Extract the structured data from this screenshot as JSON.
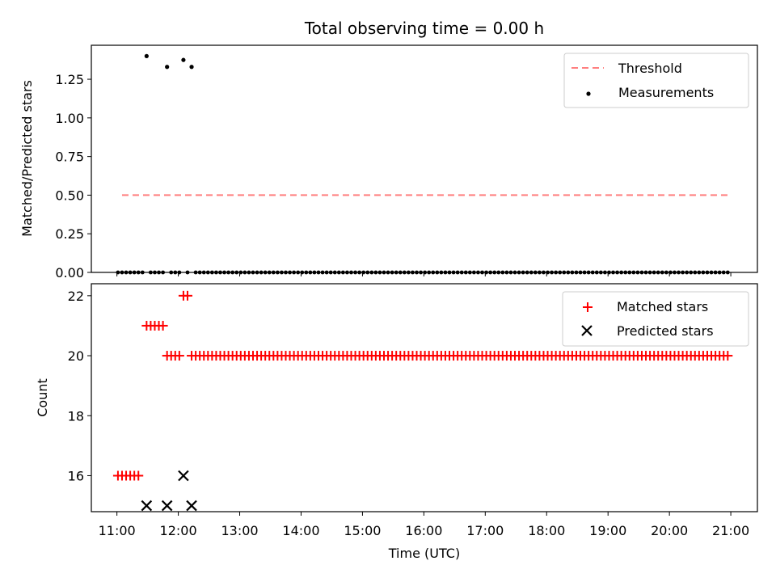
{
  "chart_data": [
    {
      "type": "scatter",
      "title": "Total observing time = 0.00 h",
      "ylabel": "Matched/Predicted stars",
      "xlabel": "",
      "ylim": [
        0,
        1.47
      ],
      "yticks": [
        "0.00",
        "0.25",
        "0.50",
        "0.75",
        "1.00",
        "1.25"
      ],
      "legend": {
        "position": "top-right",
        "entries": [
          "Threshold",
          "Measurements"
        ]
      },
      "threshold": {
        "name": "Threshold",
        "value": 0.5,
        "x_start": "11:05",
        "x_end": "21:00",
        "color": "#ff7f7f"
      },
      "measurements": {
        "name": "Measurements",
        "color": "#000000",
        "points": [
          {
            "x": "11:29",
            "y": 1.4
          },
          {
            "x": "11:49",
            "y": 1.33
          },
          {
            "x": "12:05",
            "y": 1.375
          },
          {
            "x": "12:13",
            "y": 1.33
          }
        ],
        "zero_run_start": "11:01",
        "zero_run_end": "21:00",
        "zero_step_minutes": 4
      }
    },
    {
      "type": "scatter",
      "ylabel": "Count",
      "xlabel": "Time (UTC)",
      "ylim": [
        14.8,
        22.4
      ],
      "yticks": [
        "16",
        "18",
        "20",
        "22"
      ],
      "xticks": [
        "11:00",
        "12:00",
        "13:00",
        "14:00",
        "15:00",
        "16:00",
        "17:00",
        "18:00",
        "19:00",
        "20:00",
        "21:00"
      ],
      "legend": {
        "position": "top-right",
        "entries": [
          "Matched stars",
          "Predicted stars"
        ]
      },
      "matched": {
        "name": "Matched stars",
        "color": "#ff0000",
        "groups": [
          {
            "start": "11:01",
            "end": "11:21",
            "y": 16
          },
          {
            "start": "11:29",
            "end": "11:45",
            "y": 21
          },
          {
            "start": "11:49",
            "end": "12:01",
            "y": 20
          },
          {
            "start": "12:05",
            "end": "12:09",
            "y": 22
          },
          {
            "start": "12:13",
            "end": "21:00",
            "y": 20
          }
        ],
        "step_minutes": 4
      },
      "predicted": {
        "name": "Predicted stars",
        "color": "#000000",
        "points": [
          {
            "x": "11:29",
            "y": 15
          },
          {
            "x": "11:49",
            "y": 15
          },
          {
            "x": "12:05",
            "y": 16
          },
          {
            "x": "12:13",
            "y": 15
          }
        ]
      }
    }
  ]
}
